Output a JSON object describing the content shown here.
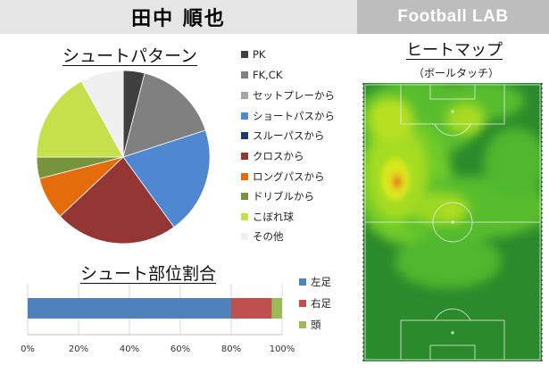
{
  "header": {
    "player_name": "田中 順也",
    "brand": "Football LAB"
  },
  "colors": {
    "header_left_bg": "#e6e6e6",
    "header_right_bg": "#bdbdbd"
  },
  "heatmap": {
    "title": "ヒートマップ",
    "subtitle": "（ボールタッチ）",
    "colormap": [
      "#2b8a2b",
      "#4fb82e",
      "#8fd624",
      "#d8e81a",
      "#e8c020",
      "#e07a20",
      "#cc3a20"
    ]
  },
  "chart_data": [
    {
      "type": "pie",
      "title": "シュートパターン",
      "unit": "%",
      "categories": [
        "PK",
        "FK,CK",
        "セットプレーから",
        "ショートパスから",
        "スルーパスから",
        "クロスから",
        "ロングパスから",
        "ドリブルから",
        "こぼれ球",
        "その他"
      ],
      "values": [
        4,
        16,
        0,
        20,
        0,
        23,
        8,
        4,
        17,
        8
      ],
      "colors": [
        "#404040",
        "#808080",
        "#a6a6a6",
        "#4f88d0",
        "#1f3864",
        "#943634",
        "#e46c0a",
        "#77933c",
        "#c4e04a",
        "#f0f0f0"
      ],
      "start_angle": "top",
      "direction": "clockwise",
      "legend_position": "right"
    },
    {
      "type": "bar",
      "orientation": "horizontal",
      "stacked": true,
      "title": "シュート部位割合",
      "series": [
        {
          "name": "左足",
          "values": [
            80
          ],
          "color": "#4f81bd"
        },
        {
          "name": "右足",
          "values": [
            16
          ],
          "color": "#c0504d"
        },
        {
          "name": "頭",
          "values": [
            4
          ],
          "color": "#9bbb59"
        }
      ],
      "xlim": [
        0,
        100
      ],
      "xticks": [
        "0%",
        "20%",
        "40%",
        "60%",
        "80%",
        "100%"
      ],
      "grid": "vertical",
      "legend_position": "right"
    }
  ]
}
